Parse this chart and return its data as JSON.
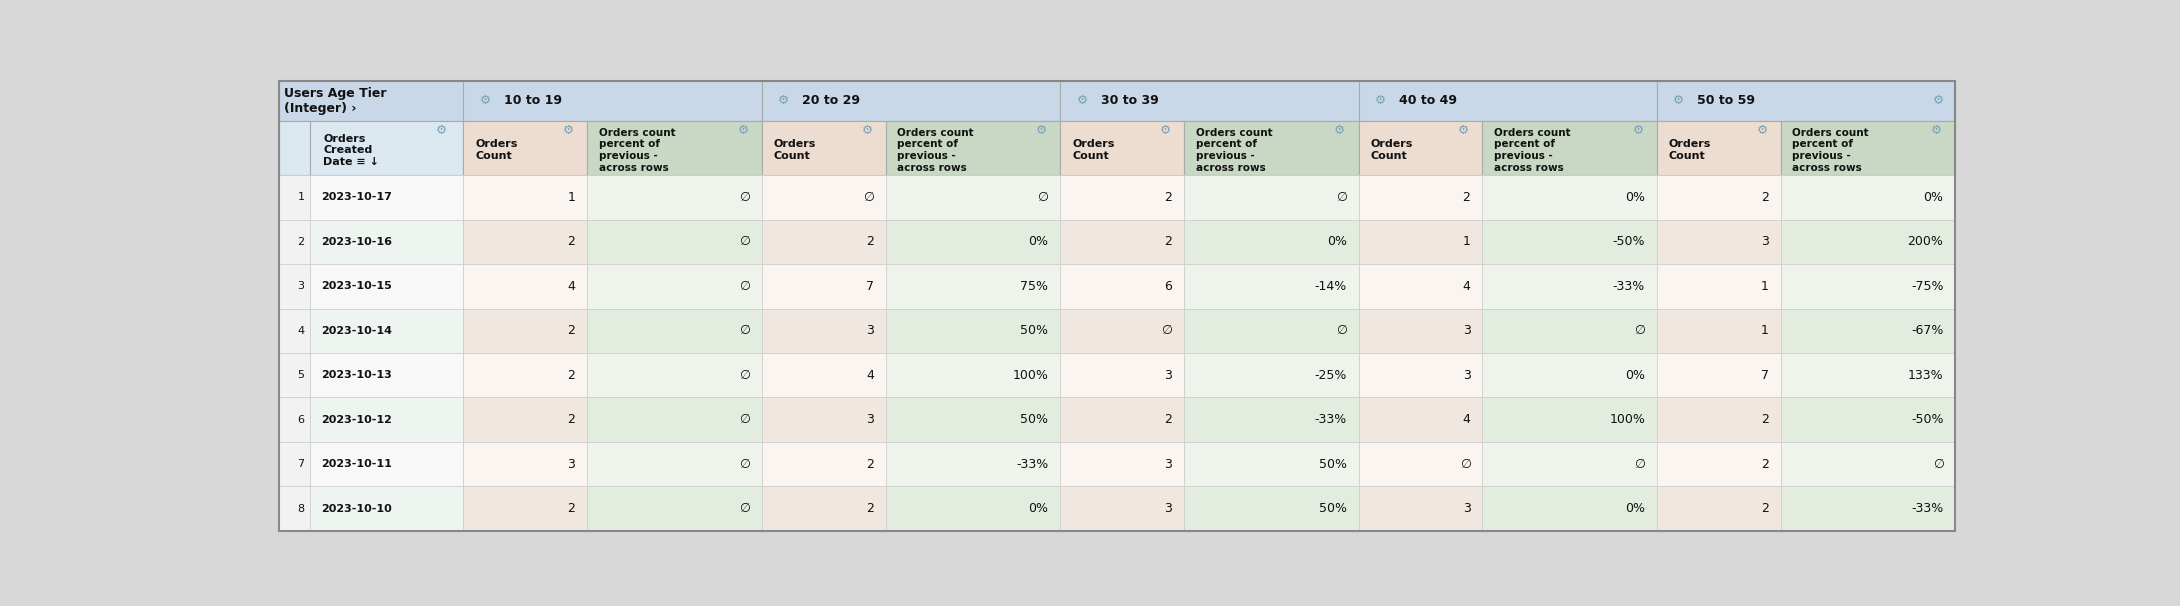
{
  "groups": [
    "10 to 19",
    "20 to 29",
    "30 to 39",
    "40 to 49",
    "50 to 59"
  ],
  "data_rows": [
    {
      "idx": "1",
      "date": "2023-10-17",
      "vals": [
        [
          "1",
          "∅"
        ],
        [
          "∅",
          "∅"
        ],
        [
          "2",
          "∅"
        ],
        [
          "2",
          "0%"
        ],
        [
          "2",
          "0%"
        ]
      ]
    },
    {
      "idx": "2",
      "date": "2023-10-16",
      "vals": [
        [
          "2",
          "∅"
        ],
        [
          "2",
          "0%"
        ],
        [
          "2",
          "0%"
        ],
        [
          "1",
          "-50%"
        ],
        [
          "3",
          "200%"
        ]
      ]
    },
    {
      "idx": "3",
      "date": "2023-10-15",
      "vals": [
        [
          "4",
          "∅"
        ],
        [
          "7",
          "75%"
        ],
        [
          "6",
          "-14%"
        ],
        [
          "4",
          "-33%"
        ],
        [
          "1",
          "-75%"
        ]
      ]
    },
    {
      "idx": "4",
      "date": "2023-10-14",
      "vals": [
        [
          "2",
          "∅"
        ],
        [
          "3",
          "50%"
        ],
        [
          "∅",
          "∅"
        ],
        [
          "3",
          "∅"
        ],
        [
          "1",
          "-67%"
        ]
      ]
    },
    {
      "idx": "5",
      "date": "2023-10-13",
      "vals": [
        [
          "2",
          "∅"
        ],
        [
          "4",
          "100%"
        ],
        [
          "3",
          "-25%"
        ],
        [
          "3",
          "0%"
        ],
        [
          "7",
          "133%"
        ]
      ]
    },
    {
      "idx": "6",
      "date": "2023-10-12",
      "vals": [
        [
          "2",
          "∅"
        ],
        [
          "3",
          "50%"
        ],
        [
          "2",
          "-33%"
        ],
        [
          "4",
          "100%"
        ],
        [
          "2",
          "-50%"
        ]
      ]
    },
    {
      "idx": "7",
      "date": "2023-10-11",
      "vals": [
        [
          "3",
          "∅"
        ],
        [
          "2",
          "-33%"
        ],
        [
          "3",
          "50%"
        ],
        [
          "∅",
          "∅"
        ],
        [
          "2",
          "∅"
        ]
      ]
    },
    {
      "idx": "8",
      "date": "2023-10-10",
      "vals": [
        [
          "2",
          "∅"
        ],
        [
          "2",
          "0%"
        ],
        [
          "3",
          "50%"
        ],
        [
          "3",
          "0%"
        ],
        [
          "2",
          "-33%"
        ]
      ]
    }
  ],
  "colors": {
    "title_bg": "#c8d8e8",
    "header_idx_bg": "#dce8f0",
    "header_count_bg": "#edddd0",
    "header_pct_bg": "#c8d8c4",
    "data_idx_bg": "#f2f2f2",
    "data_date_bg": "#f2f2f2",
    "data_count_odd": "#faf5f0",
    "data_count_even": "#f0e8e0",
    "data_pct_odd": "#eef4ec",
    "data_pct_even": "#e2ede0",
    "grid": "#c8c8c8",
    "text": "#111111",
    "gear": "#7aa0b8"
  },
  "fig_width": 21.8,
  "fig_height": 6.06,
  "dpi": 100
}
